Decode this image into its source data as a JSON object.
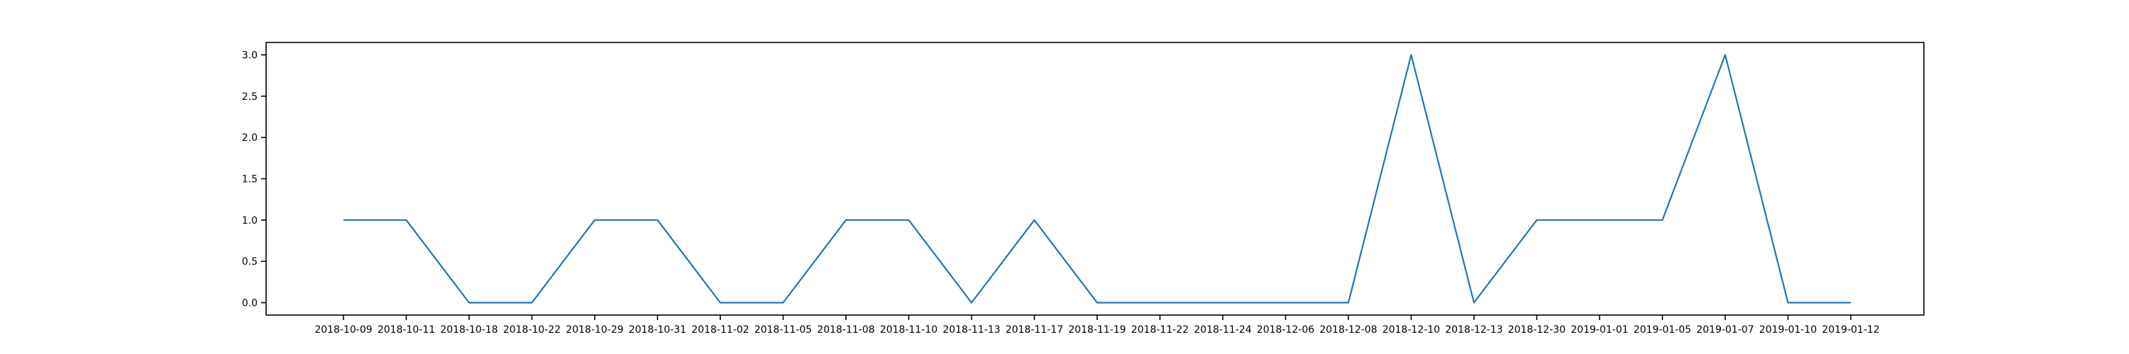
{
  "chart_data": {
    "type": "line",
    "title": "",
    "xlabel": "",
    "ylabel": "",
    "categories": [
      "2018-10-09",
      "2018-10-11",
      "2018-10-18",
      "2018-10-22",
      "2018-10-29",
      "2018-10-31",
      "2018-11-02",
      "2018-11-05",
      "2018-11-08",
      "2018-11-10",
      "2018-11-13",
      "2018-11-17",
      "2018-11-19",
      "2018-11-22",
      "2018-11-24",
      "2018-12-06",
      "2018-12-08",
      "2018-12-10",
      "2018-12-13",
      "2018-12-30",
      "2019-01-01",
      "2019-01-05",
      "2019-01-07",
      "2019-01-10",
      "2019-01-12"
    ],
    "series": [
      {
        "values": [
          1,
          1,
          0,
          0,
          1,
          1,
          0,
          0,
          1,
          1,
          0,
          1,
          0,
          0,
          0,
          0,
          0,
          3,
          0,
          1,
          1,
          1,
          3,
          0,
          0
        ]
      }
    ],
    "ylim": [
      -0.15,
      3.15
    ],
    "yticks": [
      0.0,
      0.5,
      1.0,
      1.5,
      2.0,
      2.5,
      3.0
    ],
    "ytick_labels": [
      "0.0",
      "0.5",
      "1.0",
      "1.5",
      "2.0",
      "2.5",
      "3.0"
    ],
    "grid": false,
    "legend": "none",
    "colors": {
      "line": "#1f77b4"
    }
  }
}
